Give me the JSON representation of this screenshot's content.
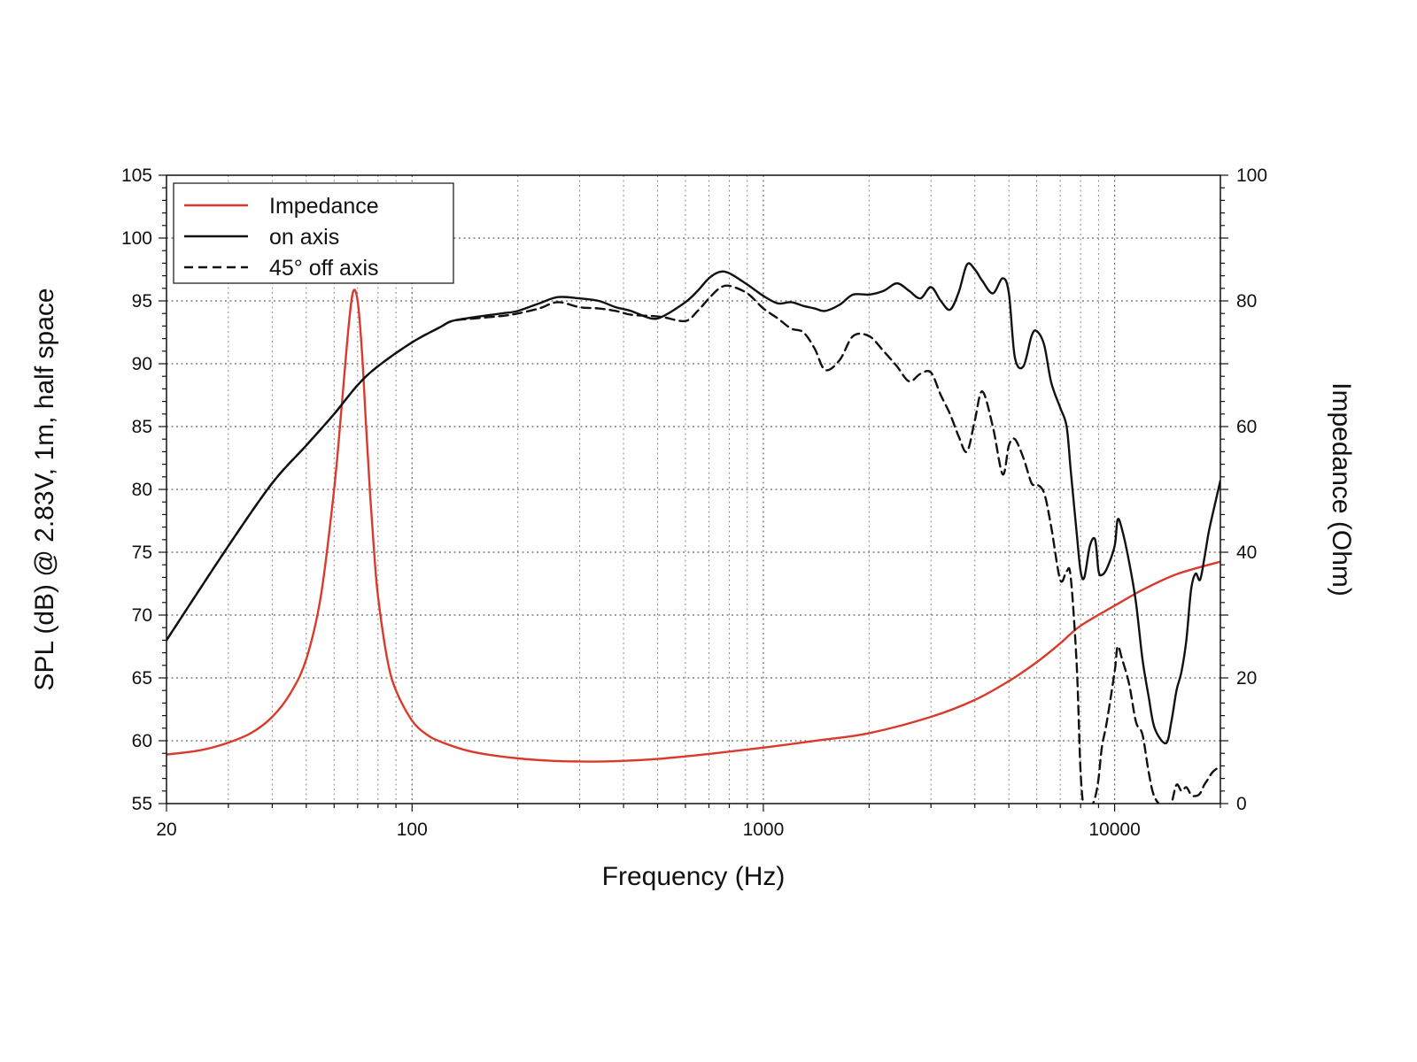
{
  "chart_data": {
    "type": "line",
    "title": "",
    "xlabel": "Frequency (Hz)",
    "ylabel": "SPL (dB) @ 2.83V, 1m, half space",
    "y2label": "Impedance (Ohm)",
    "xscale": "log",
    "xlim": [
      20,
      20000
    ],
    "ylim": [
      55,
      105
    ],
    "y2lim": [
      0,
      100
    ],
    "x_ticks": [
      20,
      100,
      1000,
      10000
    ],
    "x_tick_labels": [
      "20",
      "100",
      "1000",
      "10000"
    ],
    "y_ticks": [
      55,
      60,
      65,
      70,
      75,
      80,
      85,
      90,
      95,
      100,
      105
    ],
    "y_tick_labels": [
      "55",
      "60",
      "65",
      "70",
      "75",
      "80",
      "85",
      "90",
      "95",
      "100",
      "105"
    ],
    "y2_ticks": [
      0,
      20,
      40,
      60,
      80,
      100
    ],
    "y2_tick_labels": [
      "0",
      "20",
      "40",
      "60",
      "80",
      "100"
    ],
    "grid": true,
    "legend_position": "top-left",
    "series": [
      {
        "name": "Impedance",
        "axis": "right",
        "color": "#d93a2b",
        "style": "solid",
        "x": [
          20,
          25,
          30,
          35,
          40,
          45,
          50,
          55,
          60,
          63,
          66,
          68,
          70,
          72,
          74,
          76,
          78,
          80,
          85,
          90,
          100,
          110,
          120,
          140,
          160,
          200,
          250,
          300,
          350,
          400,
          500,
          700,
          1000,
          1500,
          2000,
          3000,
          4000,
          5000,
          6000,
          7000,
          8000,
          10000,
          12000,
          15000,
          20000
        ],
        "values": [
          7.8,
          8.5,
          9.7,
          11.3,
          13.8,
          17.5,
          23,
          33,
          50,
          63,
          76,
          81.5,
          80,
          72,
          60,
          49,
          40,
          33,
          23,
          18,
          13.2,
          11,
          9.9,
          8.6,
          7.9,
          7.2,
          6.8,
          6.7,
          6.7,
          6.8,
          7.1,
          7.9,
          8.9,
          10.2,
          11.2,
          13.8,
          16.5,
          19.5,
          22.5,
          25.5,
          28.3,
          31.5,
          34,
          36.5,
          38.5
        ]
      },
      {
        "name": "on axis",
        "axis": "left",
        "color": "#111111",
        "style": "solid",
        "x": [
          20,
          30,
          40,
          50,
          60,
          70,
          80,
          100,
          120,
          130,
          150,
          180,
          200,
          230,
          260,
          300,
          340,
          380,
          420,
          480,
          520,
          600,
          650,
          700,
          750,
          800,
          900,
          1000,
          1100,
          1200,
          1300,
          1400,
          1500,
          1650,
          1800,
          2000,
          2200,
          2400,
          2600,
          2800,
          3000,
          3200,
          3400,
          3600,
          3800,
          4000,
          4200,
          4500,
          4800,
          5000,
          5200,
          5500,
          5800,
          6000,
          6300,
          6600,
          7000,
          7300,
          7500,
          7800,
          8000,
          8200,
          8500,
          8800,
          9000,
          9200,
          9500,
          10000,
          10200,
          10500,
          11000,
          11500,
          12000,
          12500,
          13000,
          14000,
          14500,
          15000,
          15500,
          16000,
          16500,
          17000,
          17500,
          18000,
          18500,
          19000,
          20000
        ],
        "values": [
          68,
          75.5,
          80.5,
          83.5,
          86,
          88.3,
          89.8,
          91.7,
          92.9,
          93.4,
          93.7,
          94,
          94.2,
          94.8,
          95.3,
          95.2,
          95,
          94.5,
          94.2,
          93.6,
          93.8,
          94.9,
          95.8,
          96.8,
          97.3,
          97.2,
          96.3,
          95.4,
          94.8,
          94.9,
          94.6,
          94.4,
          94.2,
          94.7,
          95.5,
          95.5,
          95.8,
          96.4,
          95.8,
          95.2,
          96.1,
          95,
          94.3,
          95.7,
          97.9,
          97.5,
          96.6,
          95.6,
          96.8,
          95.6,
          90.5,
          89.8,
          92.2,
          92.6,
          91.5,
          88.5,
          86.5,
          85,
          81.5,
          76.5,
          73.5,
          73,
          75.5,
          76,
          73.5,
          73.2,
          73.7,
          75.5,
          77.6,
          76.8,
          74.2,
          71,
          66.5,
          63.5,
          61,
          59.8,
          61.5,
          64,
          65.5,
          68,
          72,
          73.3,
          72.8,
          74.5,
          76.5,
          78,
          80.7
        ]
      },
      {
        "name": "45° off axis",
        "axis": "left",
        "color": "#111111",
        "style": "dashed",
        "x": [
          20,
          30,
          40,
          50,
          60,
          70,
          80,
          100,
          120,
          130,
          150,
          180,
          200,
          230,
          260,
          300,
          340,
          380,
          420,
          480,
          520,
          600,
          650,
          700,
          750,
          800,
          900,
          1000,
          1100,
          1200,
          1300,
          1400,
          1500,
          1650,
          1800,
          2000,
          2200,
          2400,
          2600,
          2800,
          3000,
          3200,
          3400,
          3600,
          3800,
          4000,
          4200,
          4500,
          4800,
          5000,
          5200,
          5500,
          5800,
          6000,
          6300,
          6600,
          7000,
          7300,
          7500,
          7800,
          8000,
          8200,
          8500,
          8800,
          9000,
          9200,
          9500,
          10000,
          10200,
          10500,
          11000,
          11500,
          12000,
          12500,
          13000,
          14000,
          14500,
          15000,
          15500,
          16000,
          16500,
          17000,
          17500,
          18000,
          18500,
          19000,
          20000
        ],
        "values": [
          68,
          75.5,
          80.5,
          83.5,
          86,
          88.3,
          89.8,
          91.7,
          92.9,
          93.4,
          93.6,
          93.8,
          94,
          94.4,
          94.9,
          94.5,
          94.4,
          94.2,
          93.9,
          93.8,
          93.7,
          93.4,
          94.2,
          95.2,
          96,
          96.2,
          95.6,
          94.4,
          93.6,
          92.8,
          92.5,
          91.2,
          89.5,
          90.3,
          92.2,
          92.2,
          91,
          89.8,
          88.6,
          89.2,
          89.3,
          87.5,
          86,
          84.2,
          83,
          85.5,
          87.8,
          85,
          81.2,
          83.5,
          84,
          82.5,
          80.5,
          80.4,
          79.7,
          77,
          72.8,
          73.5,
          73,
          66,
          57.5,
          54.5,
          54.5,
          55.5,
          57,
          59.5,
          61.5,
          65.5,
          67.5,
          66.5,
          64.5,
          61.5,
          60.5,
          57.5,
          55.5,
          54.5,
          55,
          56.5,
          56,
          56.3,
          55.7,
          55.6,
          55.8,
          56.5,
          57,
          57.5,
          58
        ]
      }
    ]
  }
}
